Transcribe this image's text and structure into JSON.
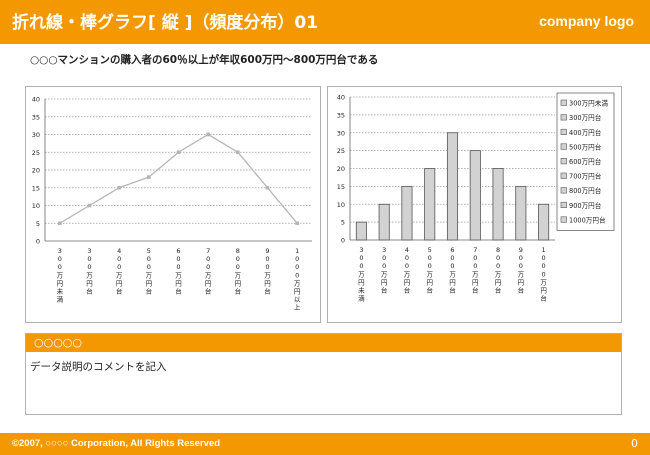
{
  "header": {
    "title": "折れ線・棒グラフ[ 縦 ]（頻度分布）01",
    "logo": "company logo"
  },
  "subtitle": "○○○マンションの購入者の60％以上が年収600万円～800万円台である",
  "chart_data": [
    {
      "type": "line",
      "categories": [
        "300万円未満",
        "300万円台",
        "400万円台",
        "500万円台",
        "600万円台",
        "700万円台",
        "800万円台",
        "900万円台",
        "1000万円以上"
      ],
      "series": [
        {
          "values": [
            5,
            10,
            15,
            18,
            25,
            30,
            25,
            15,
            5
          ]
        }
      ],
      "ylim": [
        0,
        40
      ],
      "yticks": [
        0,
        5,
        10,
        15,
        20,
        25,
        30,
        35,
        40
      ],
      "grid": true,
      "colors": {
        "line": "#b4b4b4"
      }
    },
    {
      "type": "bar",
      "categories": [
        "300万円未満",
        "300万円台",
        "400万円台",
        "500万円台",
        "600万円台",
        "700万円台",
        "800万円台",
        "900万円台",
        "1000万円台"
      ],
      "values": [
        5,
        10,
        15,
        20,
        30,
        25,
        20,
        15,
        10
      ],
      "ylim": [
        0,
        40
      ],
      "yticks": [
        0,
        5,
        10,
        15,
        20,
        25,
        30,
        35,
        40
      ],
      "grid": true,
      "legend": {
        "placement": "right",
        "entries": [
          "300万円未満",
          "300万円台",
          "400万円台",
          "500万円台",
          "600万円台",
          "700万円台",
          "800万円台",
          "900万円台",
          "1000万円台"
        ]
      },
      "colors": {
        "bar": "#d2d2d2",
        "bar_edge": "#555555"
      }
    }
  ],
  "comment": {
    "heading": "○○○○○",
    "body": "データ説明のコメントを記入"
  },
  "footer": {
    "copyright": "©2007, ○○○○ Corporation, All Rights Reserved",
    "page": "0"
  }
}
